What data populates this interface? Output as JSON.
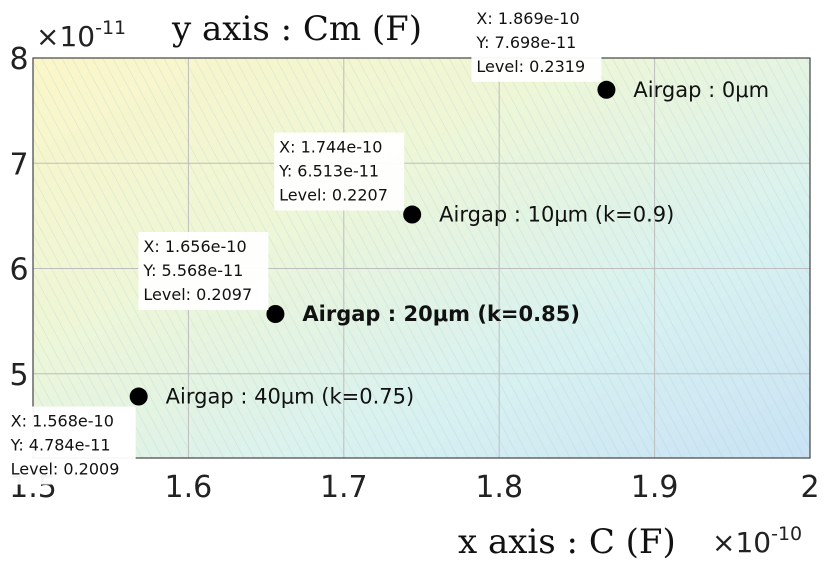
{
  "chart_data": {
    "type": "scatter",
    "title": "",
    "xlabel": "x axis : C (F)",
    "ylabel": "y axis : Cm (F)",
    "x_exponent": "×10",
    "x_exponent_power": "-10",
    "y_exponent": "×10",
    "y_exponent_power": "-11",
    "xlim": [
      1.5,
      2.0
    ],
    "ylim": [
      4.2,
      8.0
    ],
    "x_ticks": [
      "1.5",
      "1.6",
      "1.7",
      "1.8",
      "1.9",
      "2"
    ],
    "y_ticks": [
      "5",
      "6",
      "7",
      "8"
    ],
    "grid": true,
    "background": "contour-gradient",
    "points": [
      {
        "x": 1.869,
        "y": 7.698,
        "label": "Airgap : 0μm",
        "bold": false,
        "tip": [
          "X: 1.869e-10",
          "Y: 7.698e-11",
          "Level: 0.2319"
        ]
      },
      {
        "x": 1.744,
        "y": 6.513,
        "label": "Airgap : 10μm (k=0.9)",
        "bold": false,
        "tip": [
          "X: 1.744e-10",
          "Y: 6.513e-11",
          "Level: 0.2207"
        ]
      },
      {
        "x": 1.656,
        "y": 5.568,
        "label": "Airgap : 20μm (k=0.85)",
        "bold": true,
        "tip": [
          "X: 1.656e-10",
          "Y: 5.568e-11",
          "Level: 0.2097"
        ]
      },
      {
        "x": 1.568,
        "y": 4.784,
        "label": "Airgap : 40μm (k=0.75)",
        "bold": false,
        "tip": [
          "X: 1.568e-10",
          "Y: 4.784e-11",
          "Level: 0.2009"
        ]
      }
    ],
    "colors": {
      "marker": "#000000",
      "grid": "#bdbdbd",
      "tip_bg": "#ffffff"
    }
  }
}
